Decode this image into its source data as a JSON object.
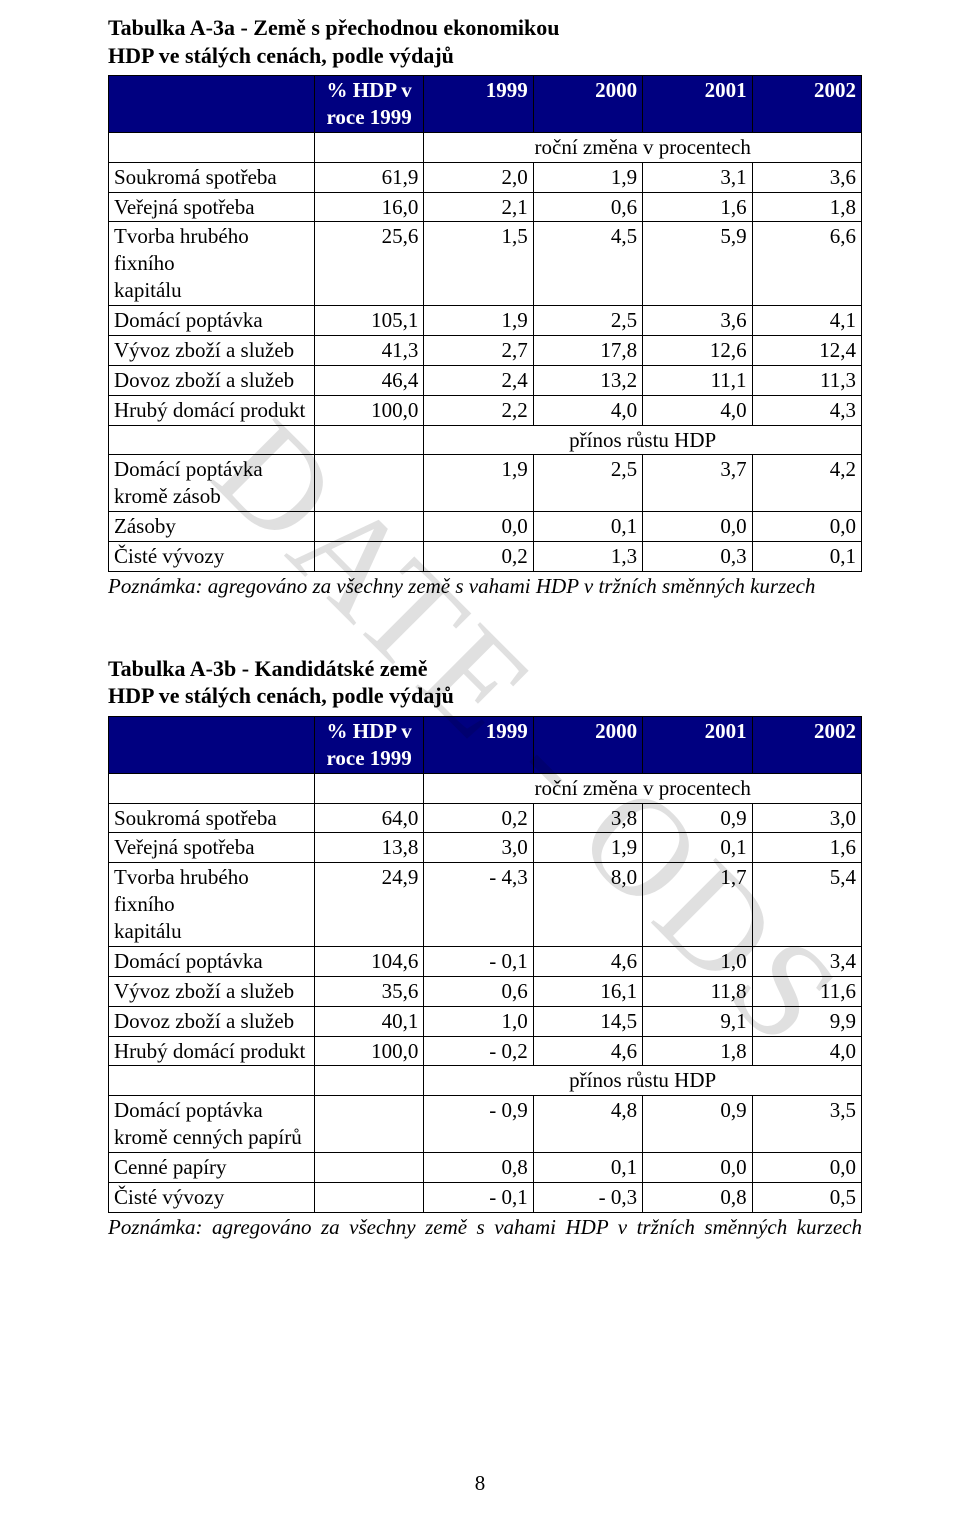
{
  "watermark": "DATE - ODS",
  "page_number": "8",
  "tableA": {
    "title_line1": "Tabulka A-3a - Země s přechodnou ekonomikou",
    "title_line2": "HDP ve stálých cenách, podle výdajů",
    "header_pct_line1": "% HDP v",
    "header_pct_line2": "roce 1999",
    "years": [
      "1999",
      "2000",
      "2001",
      "2002"
    ],
    "subheader": "roční změna v procentech",
    "rows": [
      {
        "label": "Soukromá spotřeba",
        "v": [
          "61,9",
          "2,0",
          "1,9",
          "3,1",
          "3,6"
        ]
      },
      {
        "label": "Veřejná spotřeba",
        "v": [
          "16,0",
          "2,1",
          "0,6",
          "1,6",
          "1,8"
        ]
      },
      {
        "label_line1": "Tvorba hrubého fixního",
        "label_line2": "kapitálu",
        "v": [
          "25,6",
          "1,5",
          "4,5",
          "5,9",
          "6,6"
        ]
      },
      {
        "label": "Domácí poptávka",
        "v": [
          "105,1",
          "1,9",
          "2,5",
          "3,6",
          "4,1"
        ]
      },
      {
        "label": "Vývoz zboží a služeb",
        "v": [
          "41,3",
          "2,7",
          "17,8",
          "12,6",
          "12,4"
        ]
      },
      {
        "label": "Dovoz zboží a služeb",
        "v": [
          "46,4",
          "2,4",
          "13,2",
          "11,1",
          "11,3"
        ]
      },
      {
        "label": "Hrubý domácí produkt",
        "v": [
          "100,0",
          "2,2",
          "4,0",
          "4,0",
          "4,3"
        ]
      }
    ],
    "midheader": "přínos růstu HDP",
    "rows2": [
      {
        "label_line1": "Domácí poptávka",
        "label_line2": "kromě zásob",
        "v": [
          "",
          "1,9",
          "2,5",
          "3,7",
          "4,2"
        ]
      },
      {
        "label": "Zásoby",
        "v": [
          "",
          "0,0",
          "0,1",
          "0,0",
          "0,0"
        ]
      },
      {
        "label": "Čisté vývozy",
        "v": [
          "",
          "0,2",
          "1,3",
          "0,3",
          "0,1"
        ]
      }
    ],
    "note": "Poznámka: agregováno za všechny země s vahami HDP v tržních směnných kurzech"
  },
  "tableB": {
    "title_line1": "Tabulka A-3b - Kandidátské země",
    "title_line2": "HDP ve stálých cenách, podle výdajů",
    "header_pct_line1": "% HDP v",
    "header_pct_line2": "roce 1999",
    "years": [
      "1999",
      "2000",
      "2001",
      "2002"
    ],
    "subheader": "roční změna v procentech",
    "rows": [
      {
        "label": "Soukromá spotřeba",
        "v": [
          "64,0",
          "0,2",
          "3,8",
          "0,9",
          "3,0"
        ]
      },
      {
        "label": "Veřejná spotřeba",
        "v": [
          "13,8",
          "3,0",
          "1,9",
          "0,1",
          "1,6"
        ]
      },
      {
        "label_line1": "Tvorba hrubého fixního",
        "label_line2": "kapitálu",
        "v": [
          "24,9",
          "- 4,3",
          "8,0",
          "1,7",
          "5,4"
        ]
      },
      {
        "label": "Domácí poptávka",
        "v": [
          "104,6",
          "- 0,1",
          "4,6",
          "1,0",
          "3,4"
        ]
      },
      {
        "label": "Vývoz zboží a služeb",
        "v": [
          "35,6",
          "0,6",
          "16,1",
          "11,8",
          "11,6"
        ]
      },
      {
        "label": "Dovoz zboží a služeb",
        "v": [
          "40,1",
          "1,0",
          "14,5",
          "9,1",
          "9,9"
        ]
      },
      {
        "label": "Hrubý domácí produkt",
        "v": [
          "100,0",
          "- 0,2",
          "4,6",
          "1,8",
          "4,0"
        ]
      }
    ],
    "midheader": "přínos růstu HDP",
    "rows2": [
      {
        "label_line1": "Domácí poptávka",
        "label_line2": "kromě cenných papírů",
        "v": [
          "",
          "- 0,9",
          "4,8",
          "0,9",
          "3,5"
        ]
      },
      {
        "label": "Cenné papíry",
        "v": [
          "",
          "0,8",
          "0,1",
          "0,0",
          "0,0"
        ]
      },
      {
        "label": "Čisté vývozy",
        "v": [
          "",
          "- 0,1",
          "- 0,3",
          "0,8",
          "0,5"
        ]
      }
    ],
    "note": "Poznámka: agregováno za všechny země s vahami HDP v tržních směnných kurzech"
  },
  "colors": {
    "header_bg": "#000080",
    "header_fg": "#ffffff",
    "page_bg": "#ffffff",
    "text": "#000000",
    "border": "#000000",
    "watermark": "rgba(0,0,0,0.12)"
  }
}
